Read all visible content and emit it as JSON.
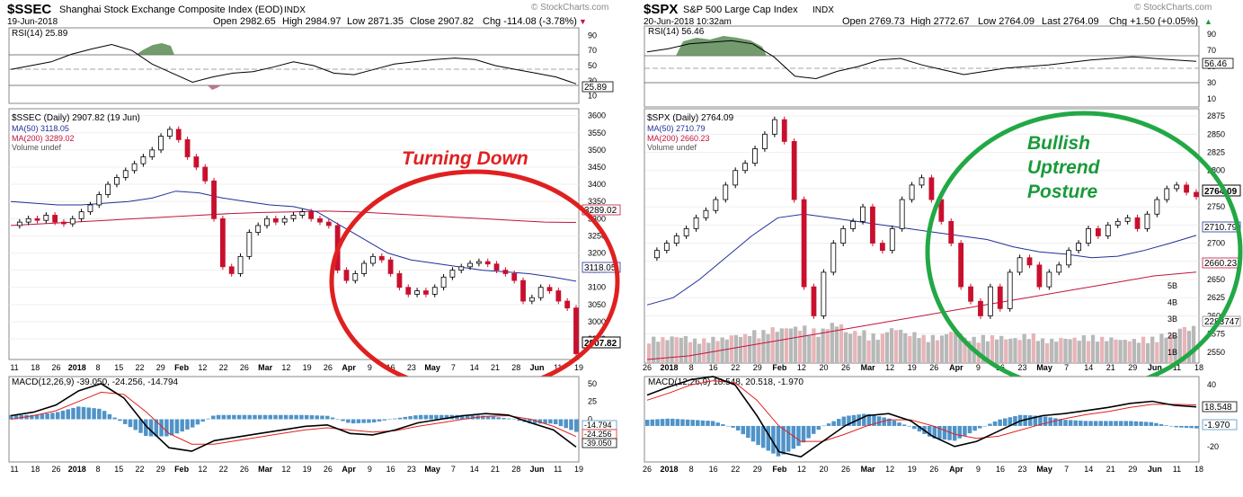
{
  "charts": [
    {
      "symbol": "$SSEC",
      "name": "Shanghai Stock Exchange Composite Index (EOD)",
      "exchange": "INDX",
      "date": "19-Jun-2018",
      "quote": {
        "open": "Open 2982.65",
        "high": "High 2984.97",
        "low": "Low 2871.35",
        "close": "Close 2907.82",
        "chg": "Chg -114.08 (-3.78%)"
      },
      "chg_marker": "▼",
      "credit": "© StockCharts.com",
      "rsi_label": "RSI(14) 25.89",
      "rsi_last": "25.89",
      "price_legend": [
        "$SSEC (Daily) 2907.82 (19 Jun)",
        "MA(50) 3118.05",
        "MA(200) 3289.02",
        "Volume undef"
      ],
      "ma50_tag": "3118.05",
      "ma200_tag": "3289.02",
      "last_tag": "2907.82",
      "macd_label": "MACD(12,26,9) -39.050, -24.256, -14.794",
      "macd_tags": [
        "-14.794",
        "-24.256",
        "-39.050"
      ],
      "annotation": [
        "Turning Down"
      ],
      "colors": {
        "annotation": "#e02020",
        "ring": "#e02020",
        "ma50": "#1f2f9a",
        "ma200": "#c0143c",
        "up": "#ffffff",
        "down": "#c8102e",
        "hist": "#4f93c8"
      }
    },
    {
      "symbol": "$SPX",
      "name": "S&P 500 Large Cap Index",
      "exchange": "INDX",
      "date": "20-Jun-2018 10:32am",
      "quote": {
        "open": "Open 2769.73",
        "high": "High 2772.67",
        "low": "Low 2764.09",
        "close": "Last 2764.09",
        "chg": "Chg +1.50 (+0.05%)"
      },
      "chg_marker": "▲",
      "credit": "© StockCharts.com",
      "rsi_label": "RSI(14) 56.46",
      "rsi_last": "56.46",
      "price_legend": [
        "$SPX (Daily) 2764.09",
        "MA(50) 2710.79",
        "MA(200) 2660.23",
        "Volume undef"
      ],
      "ma50_tag": "2710.79",
      "ma200_tag": "2660.23",
      "last_tag": "2764.09",
      "vol_tag": "2283747",
      "macd_label": "MACD(12,26,9) 18.548, 20.518, -1.970",
      "macd_tags": [
        "18.548",
        "-1.970"
      ],
      "annotation": [
        "Bullish",
        "Uptrend",
        "Posture"
      ],
      "colors": {
        "annotation": "#1a9a3a",
        "ring": "#22a845",
        "ma50": "#1f2f9a",
        "ma200": "#c0143c",
        "up": "#ffffff",
        "down": "#c8102e",
        "hist": "#4f93c8"
      }
    }
  ],
  "chart_data": [
    {
      "type": "line",
      "title": "$SSEC Shanghai Stock Exchange Composite Index (EOD)",
      "panels": [
        "RSI(14)",
        "Price",
        "MACD(12,26,9)"
      ],
      "rsi_axis": [
        90,
        70,
        50,
        30,
        10
      ],
      "price_axis": [
        3600,
        3550,
        3500,
        3450,
        3400,
        3350,
        3300,
        3250,
        3200,
        3150,
        3100,
        3050,
        3000,
        2950
      ],
      "price_ylim": [
        2890,
        3620
      ],
      "macd_axis": [
        50,
        25,
        0,
        -25
      ],
      "macd_ylim": [
        -60,
        60
      ],
      "x_ticks": [
        "11",
        "18",
        "26",
        "2018",
        "8",
        "15",
        "22",
        "29",
        "Feb",
        "12",
        "22",
        "26",
        "Mar",
        "12",
        "19",
        "26",
        "Apr",
        "9",
        "16",
        "23",
        "May",
        "7",
        "14",
        "21",
        "28",
        "Jun",
        "11",
        "19"
      ],
      "series": [
        {
          "name": "$SSEC",
          "values": [
            3280,
            3290,
            3300,
            3295,
            3310,
            3290,
            3285,
            3300,
            3320,
            3340,
            3370,
            3400,
            3420,
            3440,
            3460,
            3480,
            3500,
            3540,
            3560,
            3530,
            3480,
            3450,
            3410,
            3300,
            3160,
            3140,
            3190,
            3260,
            3280,
            3300,
            3290,
            3300,
            3310,
            3320,
            3300,
            3290,
            3280,
            3150,
            3120,
            3140,
            3170,
            3190,
            3180,
            3140,
            3100,
            3080,
            3090,
            3080,
            3100,
            3130,
            3150,
            3160,
            3170,
            3175,
            3168,
            3150,
            3140,
            3120,
            3060,
            3070,
            3100,
            3090,
            3060,
            3040,
            2907
          ]
        },
        {
          "name": "MA(50)",
          "values": [
            3350,
            3345,
            3340,
            3340,
            3345,
            3350,
            3360,
            3380,
            3375,
            3360,
            3350,
            3340,
            3335,
            3320,
            3280,
            3240,
            3200,
            3180,
            3170,
            3160,
            3150,
            3145,
            3140,
            3130,
            3118
          ]
        },
        {
          "name": "MA(200)",
          "values": [
            3280,
            3285,
            3290,
            3295,
            3300,
            3305,
            3310,
            3315,
            3318,
            3320,
            3322,
            3320,
            3315,
            3310,
            3305,
            3300,
            3295,
            3290,
            3289
          ]
        },
        {
          "name": "RSI(14)",
          "values": [
            45,
            50,
            55,
            65,
            72,
            78,
            70,
            52,
            40,
            28,
            35,
            40,
            42,
            48,
            55,
            50,
            40,
            38,
            45,
            52,
            55,
            58,
            60,
            58,
            50,
            45,
            40,
            35,
            25.89
          ]
        },
        {
          "name": "MACD",
          "values": [
            5,
            10,
            20,
            40,
            50,
            30,
            -10,
            -40,
            -45,
            -30,
            -25,
            -20,
            -15,
            -10,
            -8,
            -20,
            -22,
            -15,
            -5,
            0,
            5,
            8,
            6,
            -5,
            -15,
            -39.05
          ]
        },
        {
          "name": "Signal",
          "values": [
            0,
            5,
            12,
            25,
            38,
            35,
            10,
            -20,
            -35,
            -35,
            -30,
            -25,
            -20,
            -15,
            -12,
            -15,
            -18,
            -16,
            -10,
            -5,
            0,
            4,
            5,
            0,
            -10,
            -24.256
          ]
        }
      ]
    },
    {
      "type": "line",
      "title": "$SPX S&P 500 Large Cap Index",
      "panels": [
        "RSI(14)",
        "Price",
        "MACD(12,26,9)"
      ],
      "rsi_axis": [
        90,
        70,
        50,
        30,
        10
      ],
      "price_axis": [
        2875,
        2850,
        2825,
        2800,
        2775,
        2750,
        2725,
        2700,
        2675,
        2650,
        2625,
        2600,
        2575,
        2550
      ],
      "price_ylim": [
        2535,
        2885
      ],
      "volume_axis": [
        "5B",
        "4B",
        "3B",
        "2B",
        "1B"
      ],
      "macd_axis": [
        40,
        20,
        0,
        -20
      ],
      "macd_ylim": [
        -35,
        48
      ],
      "x_ticks": [
        "26",
        "2018",
        "8",
        "16",
        "22",
        "29",
        "Feb",
        "12",
        "20",
        "26",
        "Mar",
        "12",
        "19",
        "26",
        "Apr",
        "9",
        "16",
        "23",
        "May",
        "7",
        "14",
        "21",
        "29",
        "Jun",
        "11",
        "18"
      ],
      "series": [
        {
          "name": "$SPX",
          "values": [
            2680,
            2690,
            2700,
            2710,
            2720,
            2735,
            2745,
            2760,
            2780,
            2800,
            2810,
            2830,
            2850,
            2870,
            2840,
            2760,
            2640,
            2600,
            2660,
            2700,
            2720,
            2730,
            2750,
            2700,
            2690,
            2720,
            2760,
            2780,
            2790,
            2760,
            2730,
            2700,
            2640,
            2620,
            2600,
            2640,
            2610,
            2660,
            2680,
            2670,
            2640,
            2660,
            2670,
            2690,
            2700,
            2720,
            2710,
            2725,
            2730,
            2735,
            2720,
            2740,
            2760,
            2775,
            2780,
            2770,
            2764
          ]
        },
        {
          "name": "MA(50)",
          "values": [
            2615,
            2625,
            2650,
            2680,
            2710,
            2735,
            2740,
            2735,
            2730,
            2725,
            2720,
            2715,
            2710,
            2705,
            2695,
            2688,
            2685,
            2680,
            2682,
            2690,
            2700,
            2710.79
          ]
        },
        {
          "name": "MA(200)",
          "values": [
            2540,
            2545,
            2555,
            2565,
            2575,
            2585,
            2595,
            2605,
            2615,
            2625,
            2635,
            2645,
            2655,
            2660.23
          ]
        },
        {
          "name": "Volume",
          "values": [
            1.6,
            1.7,
            1.5,
            1.6,
            1.8,
            2.0,
            2.2,
            2.3,
            2.1,
            2.5,
            2.0,
            1.8,
            2.2,
            1.9,
            1.7,
            2.0,
            1.6,
            1.7,
            1.6,
            1.8,
            1.5,
            1.6,
            1.7,
            1.6,
            1.5,
            1.6,
            1.8,
            2.28
          ]
        },
        {
          "name": "RSI(14)",
          "values": [
            68,
            72,
            78,
            80,
            82,
            78,
            62,
            38,
            35,
            44,
            50,
            58,
            60,
            52,
            46,
            40,
            44,
            48,
            50,
            52,
            55,
            58,
            60,
            62,
            60,
            58,
            56.46
          ]
        },
        {
          "name": "MACD",
          "values": [
            30,
            38,
            45,
            48,
            40,
            10,
            -25,
            -30,
            -15,
            0,
            10,
            12,
            5,
            -10,
            -20,
            -15,
            -5,
            5,
            10,
            12,
            15,
            18,
            22,
            24,
            20,
            18.548
          ]
        },
        {
          "name": "Signal",
          "values": [
            25,
            32,
            40,
            44,
            42,
            25,
            0,
            -15,
            -15,
            -8,
            0,
            6,
            6,
            0,
            -8,
            -12,
            -10,
            -4,
            2,
            7,
            11,
            14,
            18,
            21,
            21,
            20.518
          ]
        }
      ]
    }
  ]
}
